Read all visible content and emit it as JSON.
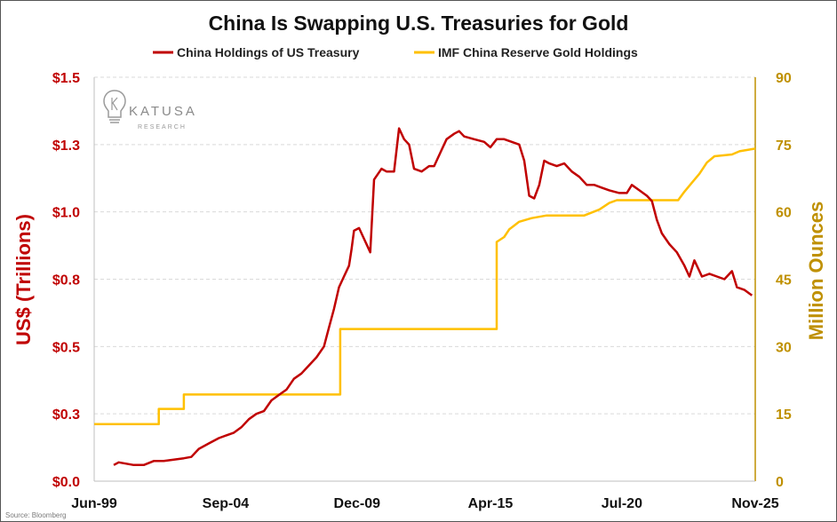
{
  "chart_data": {
    "type": "line",
    "title": "China Is Swapping U.S. Treasuries for Gold",
    "colors": {
      "treasury": "#c00000",
      "gold": "#ffc000",
      "right_axis_text": "#bf9000",
      "grid": "#d9d9d9"
    },
    "legend": {
      "placement": "top",
      "items": [
        {
          "name": "China Holdings of US Treasury",
          "color": "#c00000"
        },
        {
          "name": "IMF China Reserve Gold Holdings",
          "color": "#ffc000"
        }
      ]
    },
    "x_axis": {
      "range": [
        1999.42,
        2025.83
      ],
      "ticks": [
        {
          "value": 1999.42,
          "label": "Jun-99"
        },
        {
          "value": 2004.67,
          "label": "Sep-04"
        },
        {
          "value": 2009.92,
          "label": "Dec-09"
        },
        {
          "value": 2015.25,
          "label": "Apr-15"
        },
        {
          "value": 2020.5,
          "label": "Jul-20"
        },
        {
          "value": 2025.83,
          "label": "Nov-25"
        }
      ]
    },
    "y_left": {
      "label": "US$ (Trillions)",
      "range": [
        0,
        1.5
      ],
      "ticks": [
        {
          "value": 0,
          "label": "$0.0"
        },
        {
          "value": 0.25,
          "label": "$0.3"
        },
        {
          "value": 0.5,
          "label": "$0.5"
        },
        {
          "value": 0.75,
          "label": "$0.8"
        },
        {
          "value": 1.0,
          "label": "$1.0"
        },
        {
          "value": 1.25,
          "label": "$1.3"
        },
        {
          "value": 1.5,
          "label": "$1.5"
        }
      ]
    },
    "y_right": {
      "label": "Million Ounces",
      "range": [
        0,
        90
      ],
      "ticks": [
        {
          "value": 0,
          "label": "0"
        },
        {
          "value": 15,
          "label": "15"
        },
        {
          "value": 30,
          "label": "30"
        },
        {
          "value": 45,
          "label": "45"
        },
        {
          "value": 60,
          "label": "60"
        },
        {
          "value": 75,
          "label": "75"
        },
        {
          "value": 90,
          "label": "90"
        }
      ]
    },
    "grid": true,
    "series": [
      {
        "name": "China Holdings of US Treasury",
        "axis": "left",
        "points": [
          [
            2000.2,
            0.06
          ],
          [
            2000.4,
            0.07
          ],
          [
            2000.7,
            0.065
          ],
          [
            2001.0,
            0.06
          ],
          [
            2001.4,
            0.06
          ],
          [
            2001.8,
            0.075
          ],
          [
            2002.2,
            0.075
          ],
          [
            2002.6,
            0.08
          ],
          [
            2003.0,
            0.085
          ],
          [
            2003.3,
            0.09
          ],
          [
            2003.6,
            0.12
          ],
          [
            2004.0,
            0.14
          ],
          [
            2004.4,
            0.16
          ],
          [
            2004.7,
            0.17
          ],
          [
            2005.0,
            0.18
          ],
          [
            2005.3,
            0.2
          ],
          [
            2005.6,
            0.23
          ],
          [
            2005.9,
            0.25
          ],
          [
            2006.2,
            0.26
          ],
          [
            2006.5,
            0.3
          ],
          [
            2006.8,
            0.32
          ],
          [
            2007.1,
            0.34
          ],
          [
            2007.4,
            0.38
          ],
          [
            2007.7,
            0.4
          ],
          [
            2008.0,
            0.43
          ],
          [
            2008.3,
            0.46
          ],
          [
            2008.6,
            0.5
          ],
          [
            2008.8,
            0.57
          ],
          [
            2009.0,
            0.64
          ],
          [
            2009.2,
            0.72
          ],
          [
            2009.4,
            0.76
          ],
          [
            2009.6,
            0.8
          ],
          [
            2009.7,
            0.86
          ],
          [
            2009.8,
            0.93
          ],
          [
            2010.0,
            0.94
          ],
          [
            2010.2,
            0.9
          ],
          [
            2010.45,
            0.85
          ],
          [
            2010.6,
            1.12
          ],
          [
            2010.9,
            1.16
          ],
          [
            2011.1,
            1.15
          ],
          [
            2011.4,
            1.15
          ],
          [
            2011.6,
            1.31
          ],
          [
            2011.8,
            1.27
          ],
          [
            2012.0,
            1.25
          ],
          [
            2012.2,
            1.16
          ],
          [
            2012.5,
            1.15
          ],
          [
            2012.8,
            1.17
          ],
          [
            2013.0,
            1.17
          ],
          [
            2013.3,
            1.23
          ],
          [
            2013.5,
            1.27
          ],
          [
            2013.8,
            1.29
          ],
          [
            2014.0,
            1.3
          ],
          [
            2014.2,
            1.28
          ],
          [
            2014.6,
            1.27
          ],
          [
            2015.0,
            1.26
          ],
          [
            2015.25,
            1.24
          ],
          [
            2015.5,
            1.27
          ],
          [
            2015.8,
            1.27
          ],
          [
            2016.1,
            1.26
          ],
          [
            2016.4,
            1.25
          ],
          [
            2016.6,
            1.19
          ],
          [
            2016.8,
            1.06
          ],
          [
            2017.0,
            1.05
          ],
          [
            2017.2,
            1.1
          ],
          [
            2017.4,
            1.19
          ],
          [
            2017.6,
            1.18
          ],
          [
            2017.9,
            1.17
          ],
          [
            2018.2,
            1.18
          ],
          [
            2018.5,
            1.15
          ],
          [
            2018.8,
            1.13
          ],
          [
            2019.1,
            1.1
          ],
          [
            2019.4,
            1.1
          ],
          [
            2019.7,
            1.09
          ],
          [
            2020.0,
            1.08
          ],
          [
            2020.4,
            1.07
          ],
          [
            2020.7,
            1.07
          ],
          [
            2020.9,
            1.1
          ],
          [
            2021.2,
            1.08
          ],
          [
            2021.5,
            1.06
          ],
          [
            2021.7,
            1.04
          ],
          [
            2021.9,
            0.97
          ],
          [
            2022.1,
            0.92
          ],
          [
            2022.4,
            0.88
          ],
          [
            2022.7,
            0.85
          ],
          [
            2023.0,
            0.8
          ],
          [
            2023.2,
            0.76
          ],
          [
            2023.4,
            0.82
          ],
          [
            2023.7,
            0.76
          ],
          [
            2024.0,
            0.77
          ],
          [
            2024.3,
            0.76
          ],
          [
            2024.6,
            0.75
          ],
          [
            2024.9,
            0.78
          ],
          [
            2025.1,
            0.72
          ],
          [
            2025.4,
            0.71
          ],
          [
            2025.7,
            0.69
          ]
        ]
      },
      {
        "name": "IMF China Reserve Gold Holdings",
        "axis": "right",
        "step": true,
        "points": [
          [
            1999.42,
            12.7
          ],
          [
            2002.0,
            12.7
          ],
          [
            2002.0,
            16.1
          ],
          [
            2003.0,
            16.1
          ],
          [
            2003.0,
            19.3
          ],
          [
            2009.25,
            19.3
          ],
          [
            2009.25,
            33.9
          ],
          [
            2015.5,
            33.9
          ],
          [
            2015.5,
            53.3
          ],
          [
            2015.8,
            54.4
          ],
          [
            2016.0,
            56.1
          ],
          [
            2016.4,
            57.8
          ],
          [
            2016.9,
            58.6
          ],
          [
            2017.5,
            59.2
          ],
          [
            2019.0,
            59.2
          ],
          [
            2019.6,
            60.5
          ],
          [
            2020.0,
            62.0
          ],
          [
            2020.3,
            62.6
          ],
          [
            2022.75,
            62.6
          ],
          [
            2023.0,
            64.5
          ],
          [
            2023.3,
            66.5
          ],
          [
            2023.6,
            68.5
          ],
          [
            2023.9,
            71.0
          ],
          [
            2024.2,
            72.4
          ],
          [
            2024.9,
            72.8
          ],
          [
            2025.2,
            73.5
          ],
          [
            2025.83,
            74.1
          ]
        ]
      }
    ],
    "source": "Source: Bloomberg",
    "watermark": {
      "name": "KATUSA",
      "subtitle": "RESEARCH"
    }
  }
}
